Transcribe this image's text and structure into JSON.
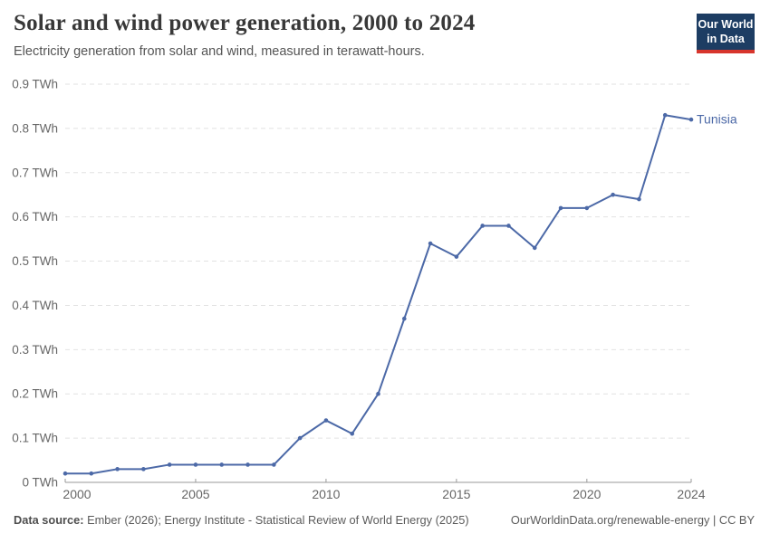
{
  "header": {
    "title": "Solar and wind power generation, 2000 to 2024",
    "subtitle": "Electricity generation from solar and wind, measured in terawatt-hours.",
    "logo": {
      "line1": "Our World",
      "line2": "in Data",
      "bg_color": "#1d3d63",
      "bar_color": "#d7352c"
    }
  },
  "chart_data": {
    "type": "line",
    "title": "Solar and wind power generation, 2000 to 2024",
    "xlabel": "",
    "ylabel": "terawatt-hours",
    "x": [
      2000,
      2001,
      2002,
      2003,
      2004,
      2005,
      2006,
      2007,
      2008,
      2009,
      2010,
      2011,
      2012,
      2013,
      2014,
      2015,
      2016,
      2017,
      2018,
      2019,
      2020,
      2021,
      2022,
      2023,
      2024
    ],
    "series": [
      {
        "name": "Tunisia",
        "color": "#4c69a7",
        "values": [
          0.02,
          0.02,
          0.03,
          0.03,
          0.04,
          0.04,
          0.04,
          0.04,
          0.04,
          0.1,
          0.14,
          0.11,
          0.2,
          0.37,
          0.54,
          0.51,
          0.58,
          0.58,
          0.53,
          0.62,
          0.62,
          0.65,
          0.64,
          0.83,
          0.82
        ]
      }
    ],
    "ylim": [
      0,
      0.9
    ],
    "yticks": [
      0,
      0.1,
      0.2,
      0.3,
      0.4,
      0.5,
      0.6,
      0.7,
      0.8,
      0.9
    ],
    "ytick_labels": [
      "0 TWh",
      "0.1 TWh",
      "0.2 TWh",
      "0.3 TWh",
      "0.4 TWh",
      "0.5 TWh",
      "0.6 TWh",
      "0.7 TWh",
      "0.8 TWh",
      "0.9 TWh"
    ],
    "xticks": [
      2000,
      2005,
      2010,
      2015,
      2020,
      2024
    ],
    "xtick_labels": [
      "2000",
      "2005",
      "2010",
      "2015",
      "2020",
      "2024"
    ],
    "grid": "horizontal-dashed",
    "gridline_color": "#e2e2e2",
    "axis_line_color": "#999999",
    "tick_text_color": "#666666",
    "legend_position": "end-of-line"
  },
  "footer": {
    "source_label": "Data source:",
    "source_text": " Ember (2026); Energy Institute - Statistical Review of World Energy (2025)",
    "link_text": "OurWorldinData.org/renewable-energy | CC BY"
  }
}
